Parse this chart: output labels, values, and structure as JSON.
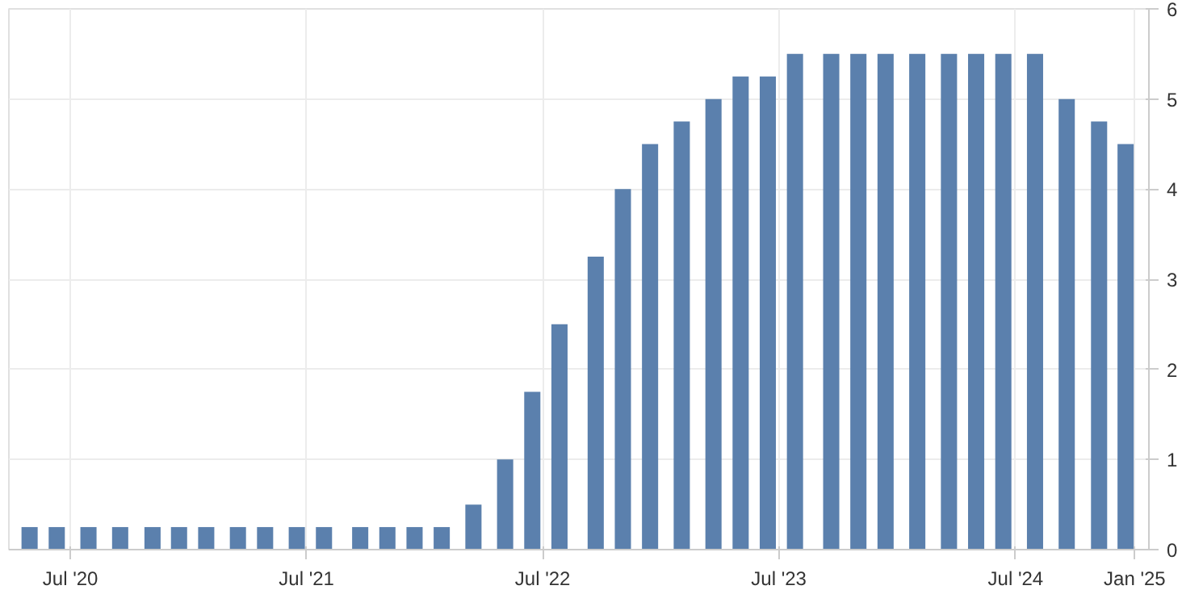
{
  "chart_data": {
    "type": "bar",
    "x": [
      "2020-04-29",
      "2020-06-10",
      "2020-07-29",
      "2020-09-16",
      "2020-11-05",
      "2020-12-16",
      "2021-01-27",
      "2021-03-17",
      "2021-04-28",
      "2021-06-16",
      "2021-07-28",
      "2021-09-22",
      "2021-11-03",
      "2021-12-15",
      "2022-01-26",
      "2022-03-16",
      "2022-05-04",
      "2022-06-15",
      "2022-07-27",
      "2022-09-21",
      "2022-11-02",
      "2022-12-14",
      "2023-02-01",
      "2023-03-22",
      "2023-05-03",
      "2023-06-14",
      "2023-07-26",
      "2023-09-20",
      "2023-11-01",
      "2023-12-13",
      "2024-01-31",
      "2024-03-20",
      "2024-05-01",
      "2024-06-12",
      "2024-07-31",
      "2024-09-18",
      "2024-11-07",
      "2024-12-18"
    ],
    "values": [
      0.25,
      0.25,
      0.25,
      0.25,
      0.25,
      0.25,
      0.25,
      0.25,
      0.25,
      0.25,
      0.25,
      0.25,
      0.25,
      0.25,
      0.25,
      0.5,
      1,
      1.75,
      2.5,
      3.25,
      4,
      4.5,
      4.75,
      5,
      5.25,
      5.25,
      5.5,
      5.5,
      5.5,
      5.5,
      5.5,
      5.5,
      5.5,
      5.5,
      5.5,
      5,
      4.75,
      4.5
    ],
    "color": "#5b80ad",
    "xlim": [
      "2020-03-28",
      "2025-01-23"
    ],
    "xticks": [
      {
        "value": "2020-07-01",
        "label": "Jul '20"
      },
      {
        "value": "2021-07-01",
        "label": "Jul '21"
      },
      {
        "value": "2022-07-01",
        "label": "Jul '22"
      },
      {
        "value": "2023-07-01",
        "label": "Jul '23"
      },
      {
        "value": "2024-07-01",
        "label": "Jul '24"
      },
      {
        "value": "2025-01-01",
        "label": "Jan '25"
      }
    ],
    "ylim": [
      0,
      6
    ],
    "yticks": [
      0,
      1,
      2,
      3,
      4,
      5,
      6
    ],
    "grid": true
  }
}
